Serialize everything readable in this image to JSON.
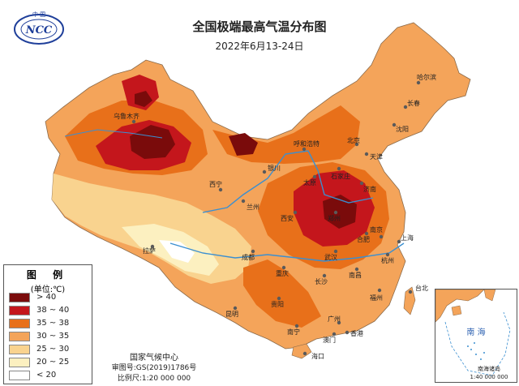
{
  "title": "全国极端最高气温分布图",
  "date_range": "2022年6月13-24日",
  "logo_text": "NCC",
  "logo_top_text": "中 国",
  "legend": {
    "title": "图 例",
    "unit": "(单位:℃)",
    "items": [
      {
        "label": "> 40",
        "color": "#7a0b0b"
      },
      {
        "label": "38 ~ 40",
        "color": "#c4161c"
      },
      {
        "label": "35 ~ 38",
        "color": "#e8701a"
      },
      {
        "label": "30 ~ 35",
        "color": "#f4a45a"
      },
      {
        "label": "25 ~ 30",
        "color": "#f9d38f"
      },
      {
        "label": "20 ~ 25",
        "color": "#fcf0c0"
      },
      {
        "label": "< 20",
        "color": "#ffffff"
      }
    ]
  },
  "credits": {
    "agency": "国家气候中心",
    "review_no": "审图号:GS(2019)1786号",
    "scale": "比例尺:1:20 000 000"
  },
  "inset": {
    "label": "南 海",
    "caption": "南海诸岛",
    "scale": "1:40 000 000"
  },
  "place_labels": [
    "乌鲁木齐",
    "西宁",
    "兰州",
    "银川",
    "呼和浩特",
    "太原",
    "石家庄",
    "济南",
    "郑州",
    "西安",
    "拉萨",
    "成都",
    "重庆",
    "贵阳",
    "昆明",
    "南宁",
    "海口",
    "上海",
    "南京",
    "杭州",
    "福州",
    "广州",
    "香港",
    "北京",
    "天津",
    "沈阳",
    "长春",
    "哈尔滨",
    "武汉",
    "长沙",
    "南昌",
    "合肥",
    "台北",
    "澳门"
  ]
}
